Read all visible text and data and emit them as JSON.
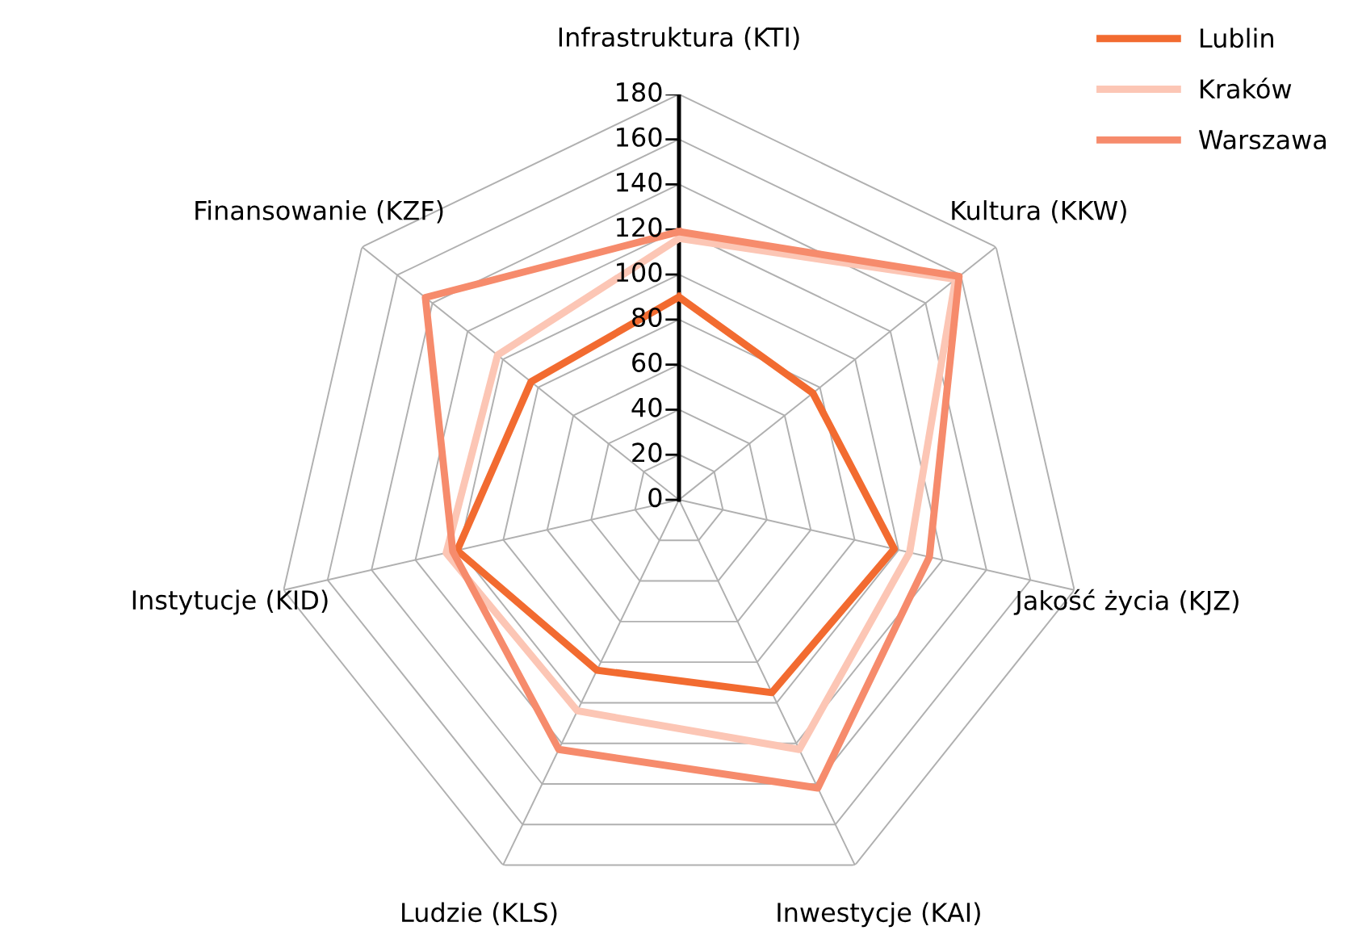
{
  "chart_data": {
    "type": "radar",
    "categories": [
      "Infrastruktura (KTI)",
      "Kultura (KKW)",
      "Jakość życia (KJZ)",
      "Inwestycje (KAI)",
      "Ludzie (KLS)",
      "Instytucje (KID)",
      "Finansowanie (KZF)"
    ],
    "series": [
      {
        "name": "Lublin",
        "color": "#f26b30",
        "values": [
          90,
          76,
          98,
          95,
          84,
          101,
          84
        ]
      },
      {
        "name": "Kraków",
        "color": "#fcc6b5",
        "values": [
          116,
          157,
          105,
          123,
          104,
          106,
          103
        ]
      },
      {
        "name": "Warszawa",
        "color": "#f68b6c",
        "values": [
          119,
          159,
          114,
          142,
          123,
          103,
          144
        ]
      }
    ],
    "ylim": [
      0,
      180
    ],
    "yticks": [
      0,
      20,
      40,
      60,
      80,
      100,
      120,
      140,
      160,
      180
    ],
    "grid": true,
    "legend": "top right"
  }
}
